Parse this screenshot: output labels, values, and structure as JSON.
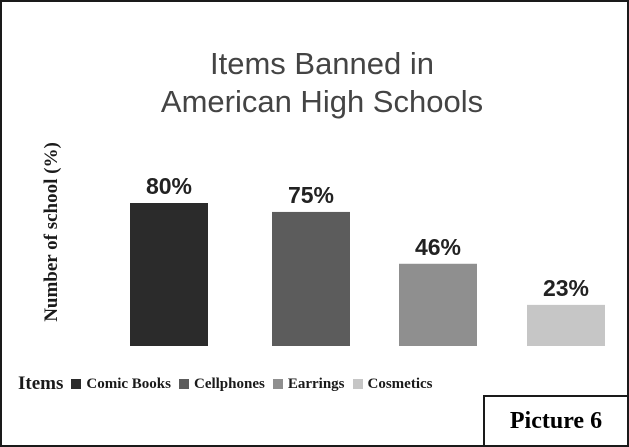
{
  "chart_data": {
    "type": "bar",
    "title": "Items Banned in American High Schools",
    "title_lines": [
      "Items Banned in",
      "American High Schools"
    ],
    "ylabel": "Number of school (%)",
    "xlabel": "Items",
    "categories": [
      "Comic Books",
      "Cellphones",
      "Earrings",
      "Cosmetics"
    ],
    "values": [
      80,
      75,
      46,
      23
    ],
    "data_labels": [
      "80%",
      "75%",
      "46%",
      "23%"
    ],
    "colors": [
      "#2b2b2b",
      "#5c5c5c",
      "#8f8f8f",
      "#c6c6c6"
    ],
    "ylim": [
      0,
      100
    ],
    "grid": false,
    "legend_position": "bottom"
  },
  "caption": "Picture 6"
}
